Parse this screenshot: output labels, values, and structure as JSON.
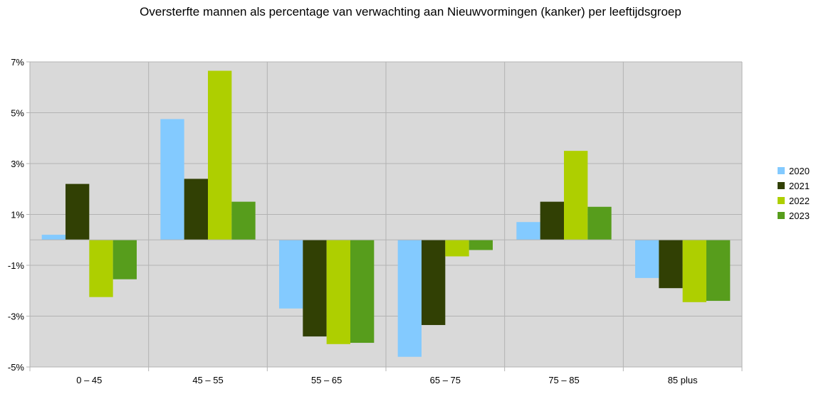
{
  "chart_data": {
    "type": "bar",
    "title": "Oversterfte mannen als percentage van verwachting aan Nieuwvormingen (kanker) per leeftijdsgroep",
    "xlabel": "",
    "ylabel": "",
    "categories": [
      "0 – 45",
      "45 – 55",
      "55 – 65",
      "65 – 75",
      "75 – 85",
      "85 plus"
    ],
    "series": [
      {
        "name": "2020",
        "color": "#83caff",
        "values": [
          0.2,
          4.75,
          -2.7,
          -4.6,
          0.7,
          -1.5
        ]
      },
      {
        "name": "2021",
        "color": "#314004",
        "values": [
          2.2,
          2.4,
          -3.8,
          -3.35,
          1.5,
          -1.9
        ]
      },
      {
        "name": "2022",
        "color": "#aecf00",
        "values": [
          -2.25,
          6.65,
          -4.1,
          -0.65,
          3.5,
          -2.45
        ]
      },
      {
        "name": "2023",
        "color": "#579d1c",
        "values": [
          -1.55,
          1.5,
          -4.05,
          -0.4,
          1.3,
          -2.4
        ]
      }
    ],
    "ylim": [
      -5,
      7
    ],
    "yticks": [
      "7%",
      "5%",
      "3%",
      "1%",
      "-1%",
      "-3%",
      "-5%"
    ],
    "grid": true,
    "legend_position": "right",
    "plot_background": "#d9d9d9",
    "grid_color": "#b3b3b3"
  }
}
